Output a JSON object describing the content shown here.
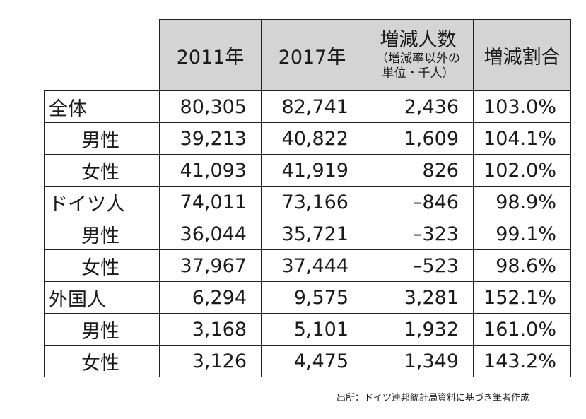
{
  "table": {
    "headers": {
      "c1": "2011年",
      "c2": "2017年",
      "c3_main": "増減人数",
      "c3_sub1": "（増減率以外の",
      "c3_sub2": "単位・千人）",
      "c4": "増減割合"
    },
    "rows": [
      {
        "label": "全体",
        "v2011": "80,305",
        "v2017": "82,741",
        "change": "2,436",
        "rate": "103.0%"
      },
      {
        "label": "男性",
        "v2011": "39,213",
        "v2017": "40,822",
        "change": "1,609",
        "rate": "104.1%"
      },
      {
        "label": "女性",
        "v2011": "41,093",
        "v2017": "41,919",
        "change": "826",
        "rate": "102.0%"
      },
      {
        "label": "ドイツ人",
        "v2011": "74,011",
        "v2017": "73,166",
        "change": "–846",
        "rate": "98.9%"
      },
      {
        "label": "男性",
        "v2011": "36,044",
        "v2017": "35,721",
        "change": "–323",
        "rate": "99.1%"
      },
      {
        "label": "女性",
        "v2011": "37,967",
        "v2017": "37,444",
        "change": "–523",
        "rate": "98.6%"
      },
      {
        "label": "外国人",
        "v2011": "6,294",
        "v2017": "9,575",
        "change": "3,281",
        "rate": "152.1%"
      },
      {
        "label": "男性",
        "v2011": "3,168",
        "v2017": "5,101",
        "change": "1,932",
        "rate": "161.0%"
      },
      {
        "label": "女性",
        "v2011": "3,126",
        "v2017": "4,475",
        "change": "1,349",
        "rate": "143.2%"
      }
    ]
  },
  "source": "出所：ドイツ連邦統計局資料に基づき筆者作成"
}
